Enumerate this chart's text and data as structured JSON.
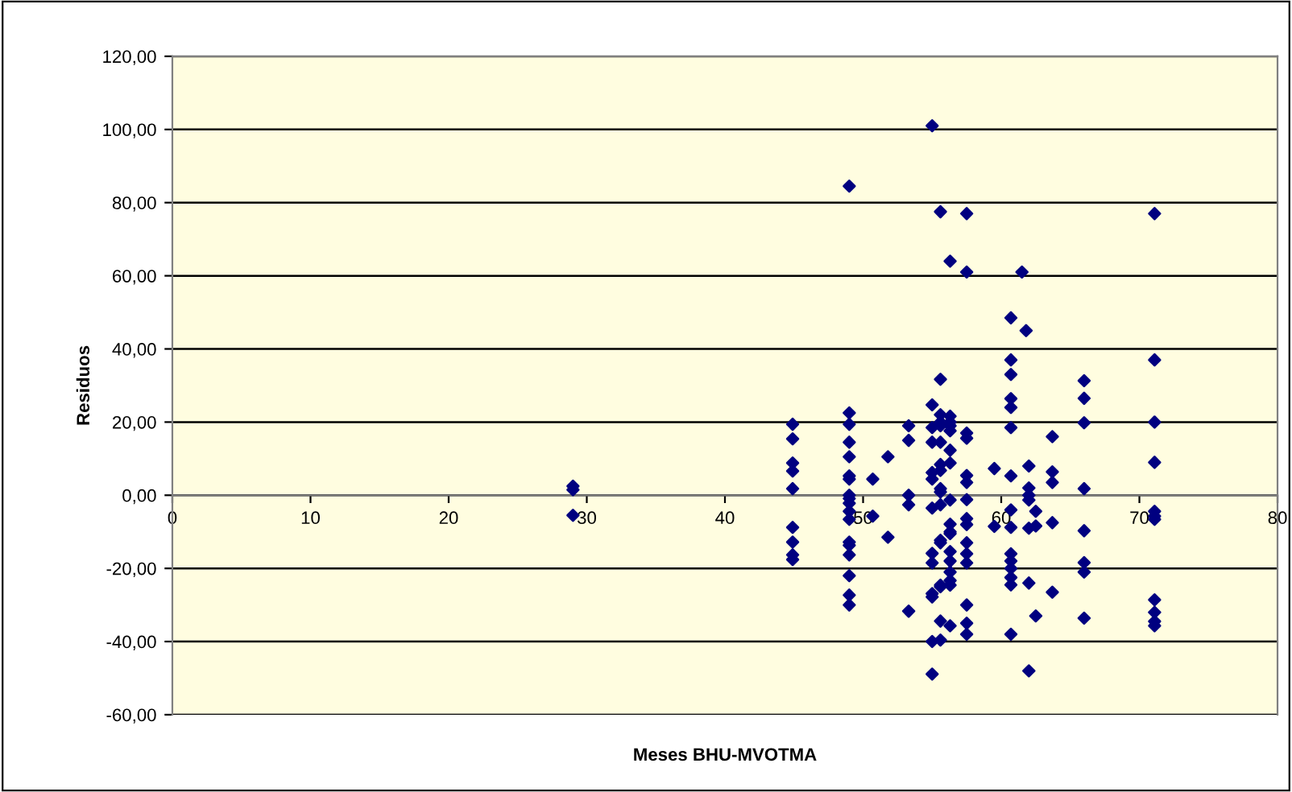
{
  "chart_data": {
    "type": "scatter",
    "xlabel": "Meses BHU-MVOTMA",
    "ylabel": "Residuos",
    "xlim": [
      0,
      80
    ],
    "xticks": [
      0,
      10,
      20,
      30,
      40,
      50,
      60,
      70,
      80
    ],
    "ylim": [
      -60,
      120
    ],
    "yticks": [
      {
        "value": -60,
        "label": "-60,00"
      },
      {
        "value": -40,
        "label": "-40,00"
      },
      {
        "value": -20,
        "label": "-20,00"
      },
      {
        "value": 0,
        "label": "0,00"
      },
      {
        "value": 20,
        "label": "20,00"
      },
      {
        "value": 40,
        "label": "40,00"
      },
      {
        "value": 60,
        "label": "60,00"
      },
      {
        "value": 80,
        "label": "80,00"
      },
      {
        "value": 100,
        "label": "100,00"
      },
      {
        "value": 120,
        "label": "120,00"
      }
    ],
    "grid": "y",
    "marker": "diamond",
    "series": [
      {
        "color": "#000080",
        "x": [
          29,
          29,
          29,
          44.9,
          44.9,
          44.9,
          44.9,
          44.9,
          44.9,
          44.9,
          44.9,
          44.9,
          49,
          49,
          49,
          49,
          49,
          49,
          49,
          49,
          49,
          49,
          49,
          49,
          49,
          49,
          49,
          49,
          49,
          49,
          50.7,
          51.8,
          50.7,
          51.8,
          53.3,
          53.3,
          53.3,
          53.3,
          53.3,
          55,
          55,
          55,
          55,
          55,
          55,
          55,
          55,
          55,
          55,
          55,
          55,
          55,
          55.6,
          55.6,
          55.6,
          55.6,
          55.6,
          55.6,
          55.6,
          55.6,
          55.6,
          55.6,
          55.6,
          55.6,
          55.6,
          55.6,
          55.6,
          55.6,
          55.6,
          56.3,
          56.3,
          56.3,
          56.3,
          56.3,
          56.3,
          56.3,
          56.3,
          56.3,
          56.3,
          56.3,
          56.3,
          56.3,
          56.3,
          56.3,
          56.3,
          56.3,
          57.5,
          57.5,
          57.5,
          57.5,
          57.5,
          57.5,
          57.5,
          57.5,
          57.5,
          57.5,
          57.5,
          57.5,
          57.5,
          57.5,
          57.5,
          59.5,
          59.5,
          60.7,
          60.7,
          60.7,
          60.7,
          60.7,
          60.7,
          60.7,
          60.7,
          60.7,
          60.7,
          60.7,
          60.7,
          60.7,
          60.7,
          60.7,
          61.5,
          61.8,
          62,
          62,
          62,
          62,
          62,
          62,
          62,
          62.5,
          62.5,
          62.5,
          63.7,
          63.7,
          63.7,
          63.7,
          63.7,
          66,
          66,
          66,
          66,
          66,
          66,
          66,
          66,
          71.1,
          71.1,
          71.1,
          71.1,
          71.1,
          71.1,
          71.1,
          71.1,
          71.1,
          71.1,
          71.1
        ],
        "values": [
          2.5,
          1.5,
          -5.5,
          19.4,
          15.4,
          8.8,
          6.6,
          1.8,
          -8.8,
          -12.8,
          -16.3,
          -17.6,
          84.5,
          22.5,
          19.4,
          14.5,
          10.5,
          5.3,
          4.4,
          0,
          -0.9,
          -2.2,
          -4.4,
          -6.6,
          -12.8,
          -13.7,
          -16.3,
          -22,
          -27.3,
          -30,
          4.4,
          10.5,
          -5.7,
          -11.5,
          19,
          15,
          0,
          -2.6,
          -31.7,
          101,
          24.7,
          18.5,
          14.5,
          6.2,
          4.4,
          -3.5,
          -15.9,
          -18.5,
          -26.9,
          -27.8,
          -40,
          -48.9,
          77.5,
          31.7,
          22,
          20,
          19,
          14.5,
          8.4,
          6.8,
          1.8,
          0.9,
          -2.6,
          -12.3,
          -13,
          -24.6,
          -25,
          -34.4,
          -39.6,
          64,
          21.6,
          20,
          19,
          17.6,
          12.3,
          8.8,
          -1.3,
          -7.9,
          -10,
          -10.5,
          -15.4,
          -18,
          -21,
          -23.3,
          -24.6,
          -35.7,
          77,
          61,
          17,
          15.6,
          5.4,
          3.5,
          -1.2,
          -6.4,
          -8,
          -13,
          -16,
          -18.5,
          -30,
          -35,
          -38,
          7.3,
          -8.5,
          48.5,
          37,
          33,
          26.4,
          24,
          18.5,
          5.3,
          -4,
          -8.8,
          -16,
          -18,
          -20,
          -22.5,
          -24.5,
          -38,
          61,
          45,
          8,
          2,
          0,
          -1.3,
          -9,
          -24,
          -48,
          -4.4,
          -8.4,
          -33,
          16,
          6.4,
          3.5,
          -7.5,
          -26.5,
          31.3,
          26.5,
          19.8,
          1.8,
          -9.7,
          -18.4,
          -21,
          -33.6,
          77,
          37,
          20,
          9,
          -4.4,
          -5.7,
          -6.6,
          -28.6,
          -32,
          -34.5,
          -35.7
        ]
      }
    ]
  }
}
